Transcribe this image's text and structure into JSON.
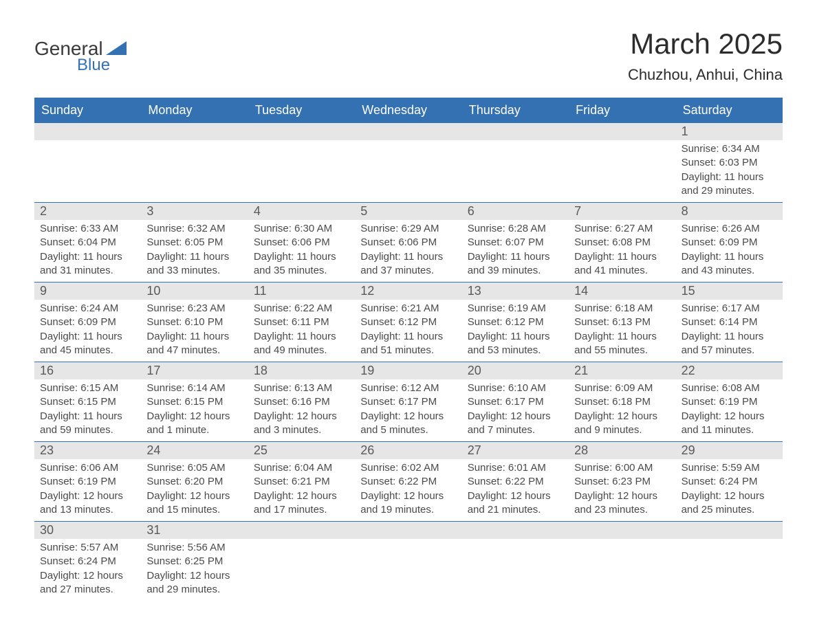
{
  "logo": {
    "text_general": "General",
    "text_blue": "Blue",
    "shape_color": "#3371b3"
  },
  "title": "March 2025",
  "location": "Chuzhou, Anhui, China",
  "colors": {
    "header_bg": "#3371b3",
    "header_text": "#ffffff",
    "daynum_bg": "#e6e6e6",
    "daynum_text": "#595959",
    "body_text": "#4a4a4a",
    "row_border": "#3371b3"
  },
  "weekdays": [
    "Sunday",
    "Monday",
    "Tuesday",
    "Wednesday",
    "Thursday",
    "Friday",
    "Saturday"
  ],
  "weeks": [
    [
      null,
      null,
      null,
      null,
      null,
      null,
      {
        "n": "1",
        "sunrise": "Sunrise: 6:34 AM",
        "sunset": "Sunset: 6:03 PM",
        "daylight": "Daylight: 11 hours and 29 minutes."
      }
    ],
    [
      {
        "n": "2",
        "sunrise": "Sunrise: 6:33 AM",
        "sunset": "Sunset: 6:04 PM",
        "daylight": "Daylight: 11 hours and 31 minutes."
      },
      {
        "n": "3",
        "sunrise": "Sunrise: 6:32 AM",
        "sunset": "Sunset: 6:05 PM",
        "daylight": "Daylight: 11 hours and 33 minutes."
      },
      {
        "n": "4",
        "sunrise": "Sunrise: 6:30 AM",
        "sunset": "Sunset: 6:06 PM",
        "daylight": "Daylight: 11 hours and 35 minutes."
      },
      {
        "n": "5",
        "sunrise": "Sunrise: 6:29 AM",
        "sunset": "Sunset: 6:06 PM",
        "daylight": "Daylight: 11 hours and 37 minutes."
      },
      {
        "n": "6",
        "sunrise": "Sunrise: 6:28 AM",
        "sunset": "Sunset: 6:07 PM",
        "daylight": "Daylight: 11 hours and 39 minutes."
      },
      {
        "n": "7",
        "sunrise": "Sunrise: 6:27 AM",
        "sunset": "Sunset: 6:08 PM",
        "daylight": "Daylight: 11 hours and 41 minutes."
      },
      {
        "n": "8",
        "sunrise": "Sunrise: 6:26 AM",
        "sunset": "Sunset: 6:09 PM",
        "daylight": "Daylight: 11 hours and 43 minutes."
      }
    ],
    [
      {
        "n": "9",
        "sunrise": "Sunrise: 6:24 AM",
        "sunset": "Sunset: 6:09 PM",
        "daylight": "Daylight: 11 hours and 45 minutes."
      },
      {
        "n": "10",
        "sunrise": "Sunrise: 6:23 AM",
        "sunset": "Sunset: 6:10 PM",
        "daylight": "Daylight: 11 hours and 47 minutes."
      },
      {
        "n": "11",
        "sunrise": "Sunrise: 6:22 AM",
        "sunset": "Sunset: 6:11 PM",
        "daylight": "Daylight: 11 hours and 49 minutes."
      },
      {
        "n": "12",
        "sunrise": "Sunrise: 6:21 AM",
        "sunset": "Sunset: 6:12 PM",
        "daylight": "Daylight: 11 hours and 51 minutes."
      },
      {
        "n": "13",
        "sunrise": "Sunrise: 6:19 AM",
        "sunset": "Sunset: 6:12 PM",
        "daylight": "Daylight: 11 hours and 53 minutes."
      },
      {
        "n": "14",
        "sunrise": "Sunrise: 6:18 AM",
        "sunset": "Sunset: 6:13 PM",
        "daylight": "Daylight: 11 hours and 55 minutes."
      },
      {
        "n": "15",
        "sunrise": "Sunrise: 6:17 AM",
        "sunset": "Sunset: 6:14 PM",
        "daylight": "Daylight: 11 hours and 57 minutes."
      }
    ],
    [
      {
        "n": "16",
        "sunrise": "Sunrise: 6:15 AM",
        "sunset": "Sunset: 6:15 PM",
        "daylight": "Daylight: 11 hours and 59 minutes."
      },
      {
        "n": "17",
        "sunrise": "Sunrise: 6:14 AM",
        "sunset": "Sunset: 6:15 PM",
        "daylight": "Daylight: 12 hours and 1 minute."
      },
      {
        "n": "18",
        "sunrise": "Sunrise: 6:13 AM",
        "sunset": "Sunset: 6:16 PM",
        "daylight": "Daylight: 12 hours and 3 minutes."
      },
      {
        "n": "19",
        "sunrise": "Sunrise: 6:12 AM",
        "sunset": "Sunset: 6:17 PM",
        "daylight": "Daylight: 12 hours and 5 minutes."
      },
      {
        "n": "20",
        "sunrise": "Sunrise: 6:10 AM",
        "sunset": "Sunset: 6:17 PM",
        "daylight": "Daylight: 12 hours and 7 minutes."
      },
      {
        "n": "21",
        "sunrise": "Sunrise: 6:09 AM",
        "sunset": "Sunset: 6:18 PM",
        "daylight": "Daylight: 12 hours and 9 minutes."
      },
      {
        "n": "22",
        "sunrise": "Sunrise: 6:08 AM",
        "sunset": "Sunset: 6:19 PM",
        "daylight": "Daylight: 12 hours and 11 minutes."
      }
    ],
    [
      {
        "n": "23",
        "sunrise": "Sunrise: 6:06 AM",
        "sunset": "Sunset: 6:19 PM",
        "daylight": "Daylight: 12 hours and 13 minutes."
      },
      {
        "n": "24",
        "sunrise": "Sunrise: 6:05 AM",
        "sunset": "Sunset: 6:20 PM",
        "daylight": "Daylight: 12 hours and 15 minutes."
      },
      {
        "n": "25",
        "sunrise": "Sunrise: 6:04 AM",
        "sunset": "Sunset: 6:21 PM",
        "daylight": "Daylight: 12 hours and 17 minutes."
      },
      {
        "n": "26",
        "sunrise": "Sunrise: 6:02 AM",
        "sunset": "Sunset: 6:22 PM",
        "daylight": "Daylight: 12 hours and 19 minutes."
      },
      {
        "n": "27",
        "sunrise": "Sunrise: 6:01 AM",
        "sunset": "Sunset: 6:22 PM",
        "daylight": "Daylight: 12 hours and 21 minutes."
      },
      {
        "n": "28",
        "sunrise": "Sunrise: 6:00 AM",
        "sunset": "Sunset: 6:23 PM",
        "daylight": "Daylight: 12 hours and 23 minutes."
      },
      {
        "n": "29",
        "sunrise": "Sunrise: 5:59 AM",
        "sunset": "Sunset: 6:24 PM",
        "daylight": "Daylight: 12 hours and 25 minutes."
      }
    ],
    [
      {
        "n": "30",
        "sunrise": "Sunrise: 5:57 AM",
        "sunset": "Sunset: 6:24 PM",
        "daylight": "Daylight: 12 hours and 27 minutes."
      },
      {
        "n": "31",
        "sunrise": "Sunrise: 5:56 AM",
        "sunset": "Sunset: 6:25 PM",
        "daylight": "Daylight: 12 hours and 29 minutes."
      },
      null,
      null,
      null,
      null,
      null
    ]
  ]
}
